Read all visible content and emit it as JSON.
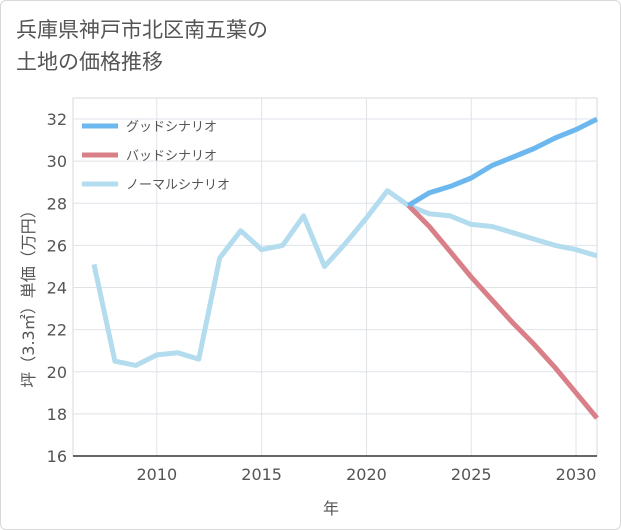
{
  "title": "兵庫県神戸市北区南五葉の\n土地の価格推移",
  "chart_data": {
    "type": "line",
    "xlabel": "年",
    "ylabel": "坪（3.3㎡）単価（万円）",
    "xlim": [
      2006,
      2031
    ],
    "ylim": [
      16,
      33
    ],
    "x_ticks": [
      2010,
      2015,
      2020,
      2025,
      2030
    ],
    "y_ticks": [
      16,
      18,
      20,
      22,
      24,
      26,
      28,
      30,
      32
    ],
    "grid": true,
    "legend_position": "top-left",
    "series": [
      {
        "name": "グッドシナリオ",
        "color": "#6cb8ee",
        "x": [
          2022,
          2023,
          2024,
          2025,
          2026,
          2027,
          2028,
          2029,
          2030,
          2031
        ],
        "y": [
          27.9,
          28.5,
          28.8,
          29.2,
          29.8,
          30.2,
          30.6,
          31.1,
          31.5,
          32.0
        ]
      },
      {
        "name": "バッドシナリオ",
        "color": "#d97f88",
        "x": [
          2022,
          2023,
          2024,
          2025,
          2026,
          2027,
          2028,
          2029,
          2030,
          2031
        ],
        "y": [
          27.9,
          26.9,
          25.7,
          24.5,
          23.4,
          22.3,
          21.3,
          20.2,
          19.0,
          17.8
        ]
      },
      {
        "name": "ノーマルシナリオ",
        "color": "#b3dcee",
        "x": [
          2007,
          2008,
          2009,
          2010,
          2011,
          2012,
          2013,
          2014,
          2015,
          2016,
          2017,
          2018,
          2019,
          2020,
          2021,
          2022,
          2023,
          2024,
          2025,
          2026,
          2027,
          2028,
          2029,
          2030,
          2031
        ],
        "y": [
          25.1,
          20.5,
          20.3,
          20.8,
          20.9,
          20.6,
          25.4,
          26.7,
          25.8,
          26.0,
          27.4,
          25.0,
          26.1,
          27.3,
          28.6,
          27.9,
          27.5,
          27.4,
          27.0,
          26.9,
          26.6,
          26.3,
          26.0,
          25.8,
          25.5
        ]
      }
    ]
  }
}
